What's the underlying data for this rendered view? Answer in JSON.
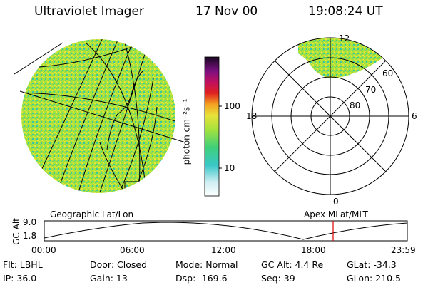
{
  "header": {
    "instrument": "Ultraviolet Imager",
    "date": "17 Nov 00",
    "time": "19:08:24 UT"
  },
  "colorbar": {
    "unit_label": "photon cm⁻²s⁻¹",
    "ticks": [
      "100",
      "10"
    ]
  },
  "polar_plot": {
    "mlt_labels": {
      "top": "12",
      "left": "18",
      "right": "6",
      "bottom": "0"
    },
    "lat_labels": [
      "60",
      "70",
      "80"
    ]
  },
  "panel_labels": {
    "left": "Geographic Lat/Lon",
    "right": "Apex MLat/MLT"
  },
  "alt_strip": {
    "axis_label": "GC Alt",
    "y_ticks": [
      "9.0",
      "1.8"
    ],
    "x_ticks": [
      "00:00",
      "06:00",
      "12:00",
      "18:00",
      "23:59"
    ],
    "marker_color": "#e00000"
  },
  "info": {
    "row1": {
      "filter": "Flt: LBHL",
      "door": "Door: Closed",
      "mode": "Mode: Normal",
      "gc_alt": "GC Alt: 4.4 Re",
      "glat": "GLat: -34.3"
    },
    "row2": {
      "ip": "IP: 36.0",
      "gain": "Gain: 13",
      "dsp": "Dsp: -169.6",
      "seq": "Seq: 39",
      "glon": "GLon: 210.5"
    }
  },
  "colors": {
    "disk_main": "#a6e23c",
    "disk_secondary": "#39c7a8",
    "disk_highlight": "#e8e23a"
  }
}
